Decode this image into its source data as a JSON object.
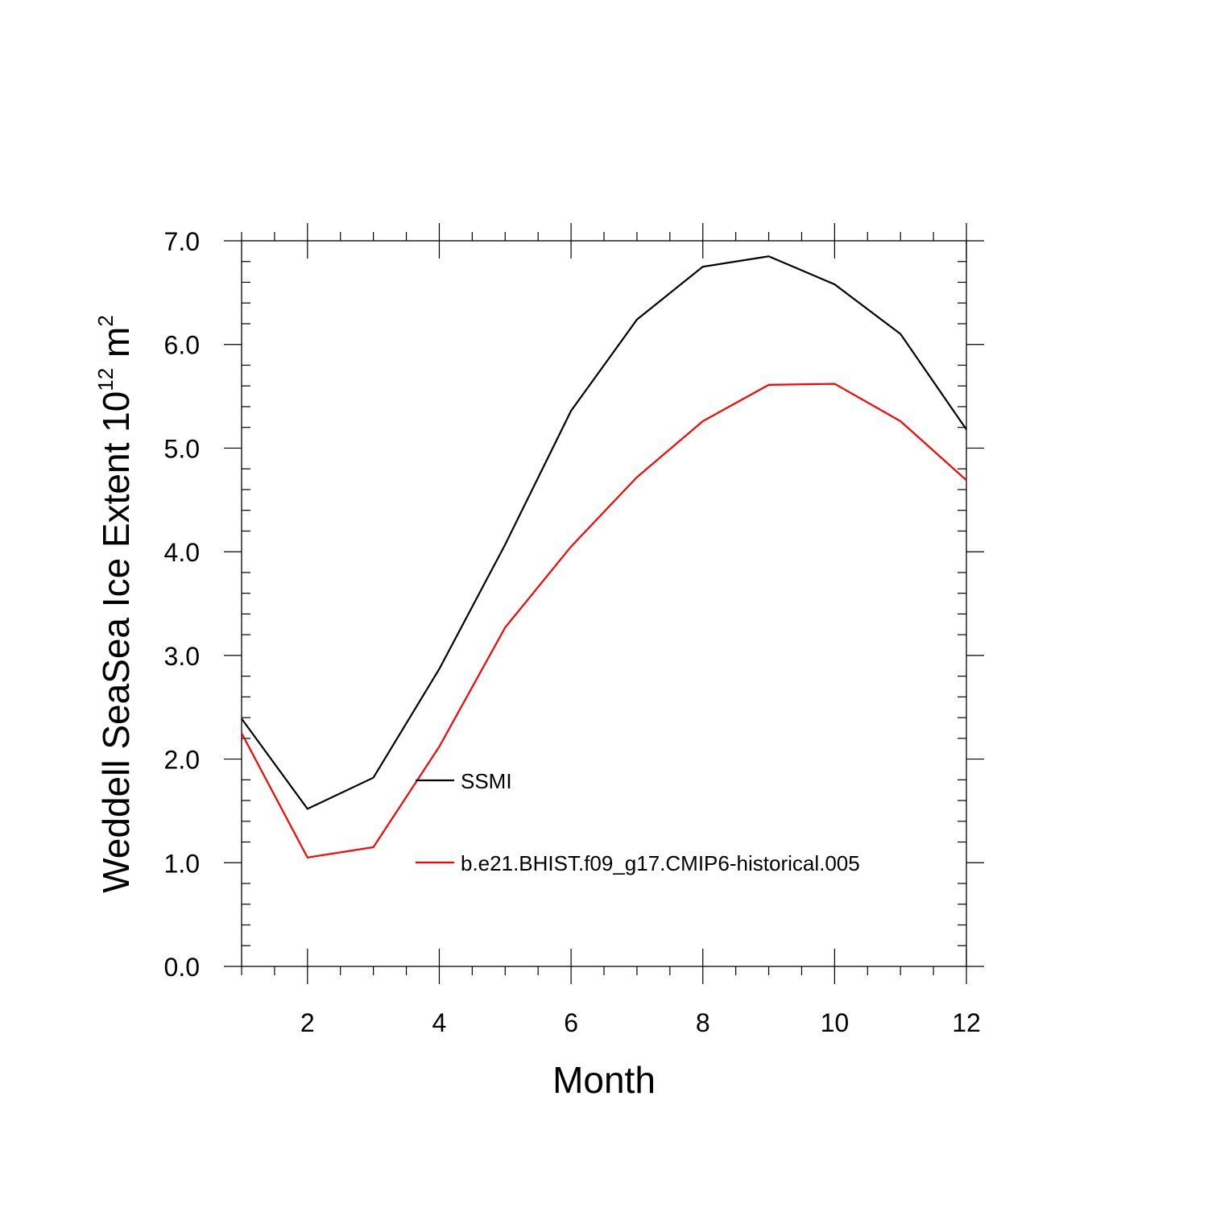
{
  "chart_data": {
    "type": "line",
    "xlabel": "Month",
    "ylabel": {
      "prefix": "Weddell SeaSea Ice Extent 10",
      "exponent1": "12",
      "middle": " m",
      "exponent2": "2"
    },
    "xlim": [
      1,
      12
    ],
    "ylim": [
      0,
      7
    ],
    "x_ticks": [
      2,
      4,
      6,
      8,
      10,
      12
    ],
    "y_ticks": [
      "0.0",
      "1.0",
      "2.0",
      "3.0",
      "4.0",
      "5.0",
      "6.0",
      "7.0"
    ],
    "grid": false,
    "legend_position": "inside, lower-center",
    "x": [
      1,
      2,
      3,
      4,
      5,
      6,
      7,
      8,
      9,
      10,
      11,
      12
    ],
    "series": [
      {
        "name": "SSMI",
        "color": "#000000",
        "values": [
          2.39,
          1.52,
          1.82,
          2.87,
          4.07,
          5.36,
          6.24,
          6.75,
          6.85,
          6.58,
          6.1,
          5.18
        ]
      },
      {
        "name": "b.e21.BHIST.f09_g17.CMIP6-historical.005",
        "color": "#ff0000",
        "values": [
          2.25,
          1.05,
          1.15,
          2.12,
          3.27,
          4.05,
          4.72,
          5.26,
          5.61,
          5.62,
          5.26,
          4.69
        ]
      }
    ]
  }
}
